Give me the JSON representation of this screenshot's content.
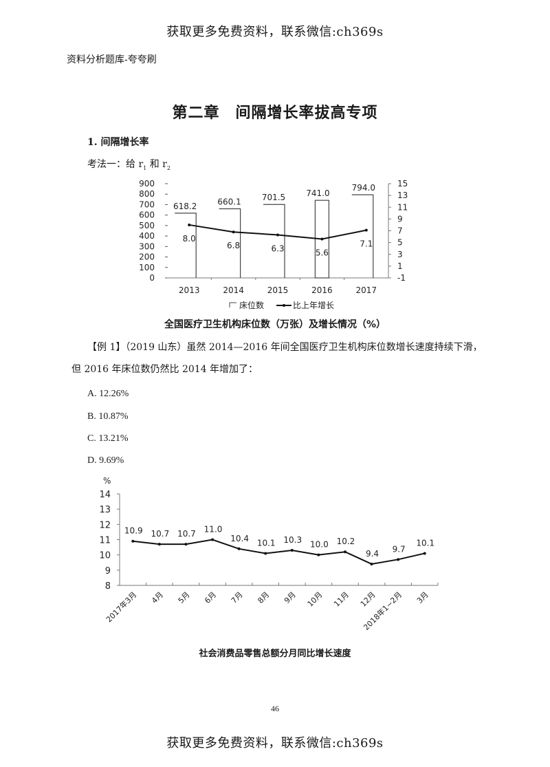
{
  "watermark": {
    "top": "获取更多免费资料，联系微信:ch369s",
    "bottom": "获取更多免费资料，联系微信:ch369s"
  },
  "header_note": "资料分析题库-夸夸刷",
  "chapter_title": "第二章　间隔增长率拔高专项",
  "section_title": "1. 间隔增长率",
  "method": {
    "prefix": "考法一：给 r",
    "sub1": "1",
    "mid": " 和 r",
    "sub2": "2"
  },
  "question": {
    "line1": "【例 1】（2019 山东）虽然 2014—2016 年间全国医疗卫生机构床位数增长速度持续下滑，",
    "line2": "但 2016 年床位数仍然比 2014 年增加了：",
    "options": [
      "A. 12.26%",
      "B. 10.87%",
      "C. 13.21%",
      "D. 9.69%"
    ]
  },
  "page_number": "46",
  "chart_data": [
    {
      "type": "bar+line",
      "title": "全国医疗卫生机构床位数（万张）及增长情况（%）",
      "categories": [
        "2013",
        "2014",
        "2015",
        "2016",
        "2017"
      ],
      "series": [
        {
          "name": "床位数",
          "type": "bar",
          "axis": "left",
          "values": [
            618.2,
            660.1,
            701.5,
            741.0,
            794.0
          ],
          "labels": [
            "618.2",
            "660.1",
            "701.5",
            "741.0",
            "794.0"
          ]
        },
        {
          "name": "比上年增长",
          "type": "line",
          "axis": "right",
          "values": [
            8.0,
            6.8,
            6.3,
            5.6,
            7.1
          ],
          "labels": [
            "8.0",
            "6.8",
            "6.3",
            "5.6",
            "7.1"
          ]
        }
      ],
      "left_axis": {
        "ticks": [
          "900",
          "800",
          "700",
          "600",
          "500",
          "400",
          "300",
          "200",
          "100",
          "0"
        ],
        "ylim": [
          0,
          900
        ]
      },
      "right_axis": {
        "ticks": [
          "15",
          "13",
          "11",
          "9",
          "7",
          "5",
          "3",
          "1",
          "-1"
        ],
        "ylim": [
          -1,
          15
        ]
      },
      "legend": [
        "床位数",
        "比上年增长"
      ],
      "legend_position": "bottom",
      "grid": false
    },
    {
      "type": "line",
      "title": "社会消费品零售总额分月同比增长速度",
      "ylabel": "%",
      "categories": [
        "2017年3月",
        "4月",
        "5月",
        "6月",
        "7月",
        "8月",
        "9月",
        "10月",
        "11月",
        "12月",
        "2018年1~2月",
        "3月"
      ],
      "values": [
        10.9,
        10.7,
        10.7,
        11.0,
        10.4,
        10.1,
        10.3,
        10.0,
        10.2,
        9.4,
        9.7,
        10.1
      ],
      "labels": [
        "10.9",
        "10.7",
        "10.7",
        "11.0",
        "10.4",
        "10.1",
        "10.3",
        "10.0",
        "10.2",
        "9.4",
        "9.7",
        "10.1"
      ],
      "y_ticks": [
        "14",
        "13",
        "12",
        "11",
        "10",
        "9",
        "8"
      ],
      "ylim": [
        8,
        14
      ],
      "grid": false
    }
  ]
}
